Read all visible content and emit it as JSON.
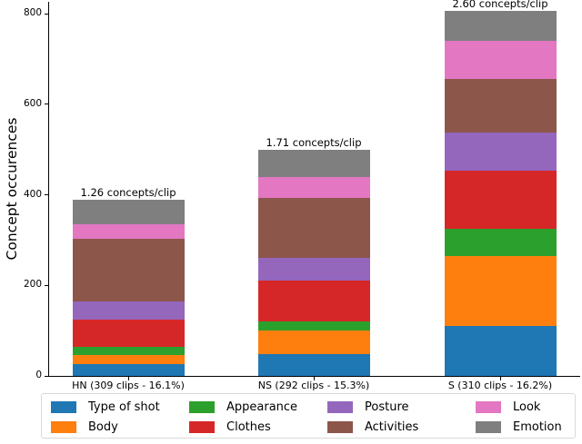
{
  "chart_data": {
    "type": "bar",
    "subtype": "stacked",
    "categories": [
      "HN (309 clips - 16.1%)",
      "NS (292 clips - 15.3%)",
      "S (310 clips - 16.2%)"
    ],
    "series": [
      {
        "name": "Type of shot",
        "color": "#1f77b4",
        "values": [
          27,
          48,
          111
        ]
      },
      {
        "name": "Body",
        "color": "#ff7f0e",
        "values": [
          20,
          53,
          154
        ]
      },
      {
        "name": "Appearance",
        "color": "#2ca02c",
        "values": [
          18,
          20,
          59
        ]
      },
      {
        "name": "Clothes",
        "color": "#d62728",
        "values": [
          59,
          89,
          130
        ]
      },
      {
        "name": "Posture",
        "color": "#9467bd",
        "values": [
          41,
          50,
          84
        ]
      },
      {
        "name": "Activities",
        "color": "#8c564b",
        "values": [
          137,
          134,
          117
        ]
      },
      {
        "name": "Look",
        "color": "#e377c2",
        "values": [
          32,
          46,
          85
        ]
      },
      {
        "name": "Emotion",
        "color": "#7f7f7f",
        "values": [
          55,
          59,
          66
        ]
      }
    ],
    "stack_totals": [
      389,
      499,
      806
    ],
    "bar_annotations": [
      "1.26 concepts/clip",
      "1.71 concepts/clip",
      "2.60 concepts/clip"
    ],
    "ylabel": "Concept occurences",
    "xlabel": "",
    "yticks": [
      0,
      200,
      400,
      600,
      800
    ],
    "ylim": [
      0,
      830
    ],
    "grid": false,
    "legend_position": "bottom",
    "legend_columns": 4,
    "legend_order_by_column": [
      [
        "Type of shot",
        "Body"
      ],
      [
        "Appearance",
        "Clothes"
      ],
      [
        "Posture",
        "Activities"
      ],
      [
        "Look",
        "Emotion"
      ]
    ]
  }
}
